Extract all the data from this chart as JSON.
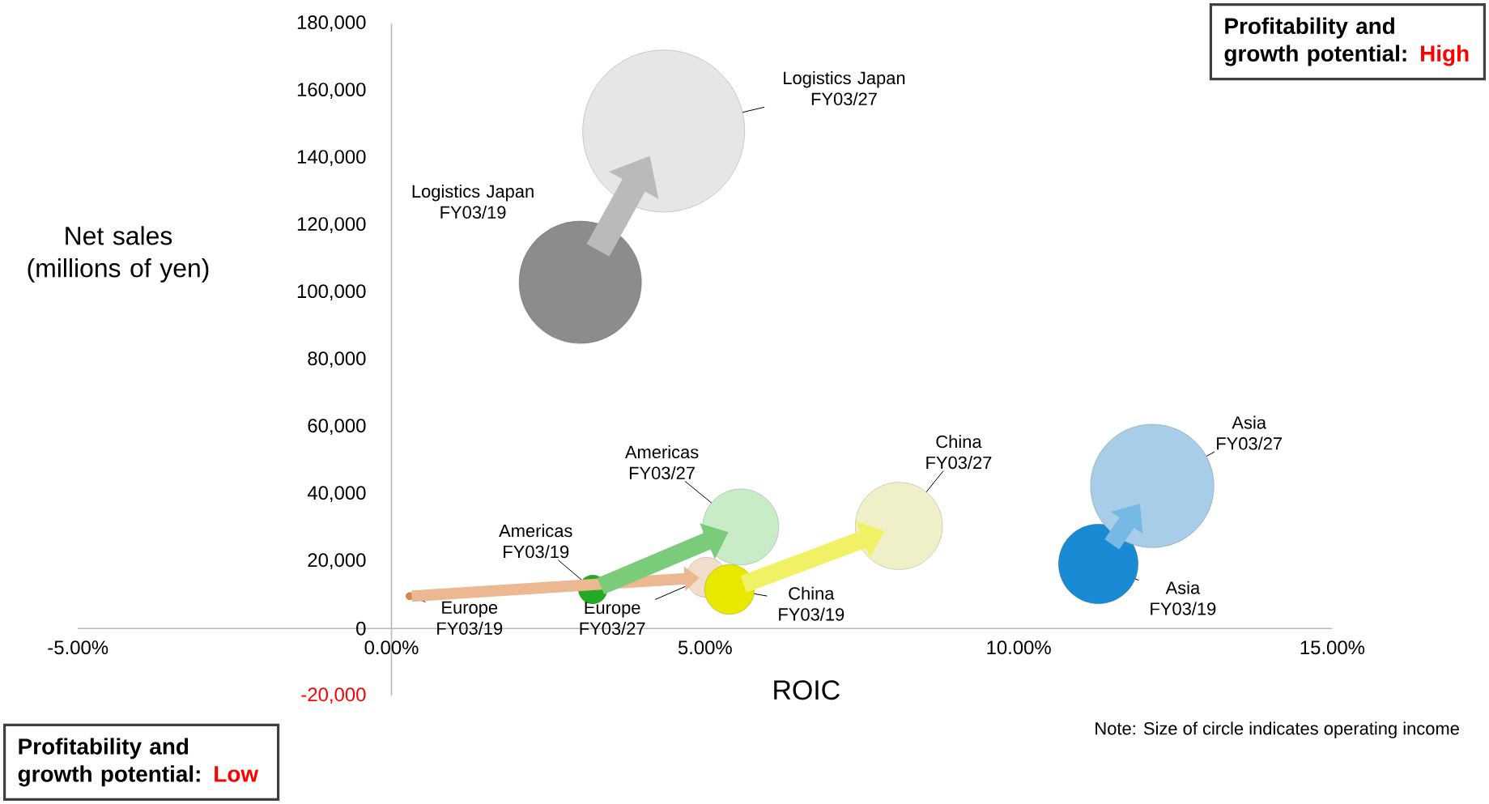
{
  "chart_data": {
    "type": "bubble",
    "xlabel": "ROIC",
    "ylabel": "Net sales (millions of yen)",
    "x": [
      3.01,
      4.34,
      0.29,
      5.02,
      3.21,
      5.57,
      5.39,
      8.09,
      11.27,
      12.13
    ],
    "values": [
      103000,
      148000,
      9600,
      15200,
      11600,
      30200,
      11600,
      30500,
      19200,
      42400
    ],
    "sizes": [
      0.57,
      1,
      0.002,
      0.061,
      0.031,
      0.22,
      0.094,
      0.29,
      0.24,
      0.58
    ],
    "colors": [
      "#8c8c8c",
      "#e6e6e6",
      "#e0884a",
      "#f2dccc",
      "#22aa22",
      "#c8ecc8",
      "#e8e800",
      "#f0f0c8",
      "#1a8ad4",
      "#a8cde8"
    ],
    "xlim": [
      -5,
      15
    ],
    "xticks": [
      {
        "value": -5,
        "label": "-5.00%"
      },
      {
        "value": 0,
        "label": "0.00%"
      },
      {
        "value": 5,
        "label": "5.00%"
      },
      {
        "value": 10,
        "label": "10.00%"
      },
      {
        "value": 15,
        "label": "15.00%"
      }
    ],
    "ylim": [
      -20000,
      180000
    ],
    "yticks": [
      {
        "value": -20000,
        "label": "-20,000"
      },
      0,
      {
        "value": 20000,
        "label": "20,000"
      },
      {
        "value": 40000,
        "label": "40,000"
      },
      {
        "value": 60000,
        "label": "60,000"
      },
      {
        "value": 80000,
        "label": "80,000"
      },
      {
        "value": 100000,
        "label": "100,000"
      },
      {
        "value": 120000,
        "label": "120,000"
      },
      {
        "value": 140000,
        "label": "140,000"
      },
      {
        "value": 160000,
        "label": "160,000"
      },
      {
        "value": 180000,
        "label": "180,000"
      }
    ],
    "annotations": [
      "Profitability and growth potential:",
      "High",
      "Profitability and growth potential:",
      "Low",
      "Note: Size of circle indicates operating income",
      "Logistics Japan FY03/19",
      {
        "text": "Logistics Japan FY03/27",
        "x": 4.34,
        "y": 148000
      },
      {
        "text": "Europe FY03/19",
        "x": 0.29,
        "y": 9600
      },
      {
        "text": "Europe FY03/27",
        "x": 5.02,
        "y": 15200
      },
      {
        "text": "Americas FY03/19",
        "x": 3.21,
        "y": 11600
      },
      {
        "text": "Americas FY03/27",
        "x": 5.57,
        "y": 30200
      },
      {
        "text": "China FY03/19",
        "x": 5.39,
        "y": 11600
      },
      {
        "text": "China FY03/27",
        "x": 8.09,
        "y": 30500
      },
      {
        "text": "Asia FY03/19",
        "x": 11.27,
        "y": 19200
      },
      {
        "text": "Asia FY03/27",
        "x": 12.13,
        "y": 42400
      }
    ]
  }
}
